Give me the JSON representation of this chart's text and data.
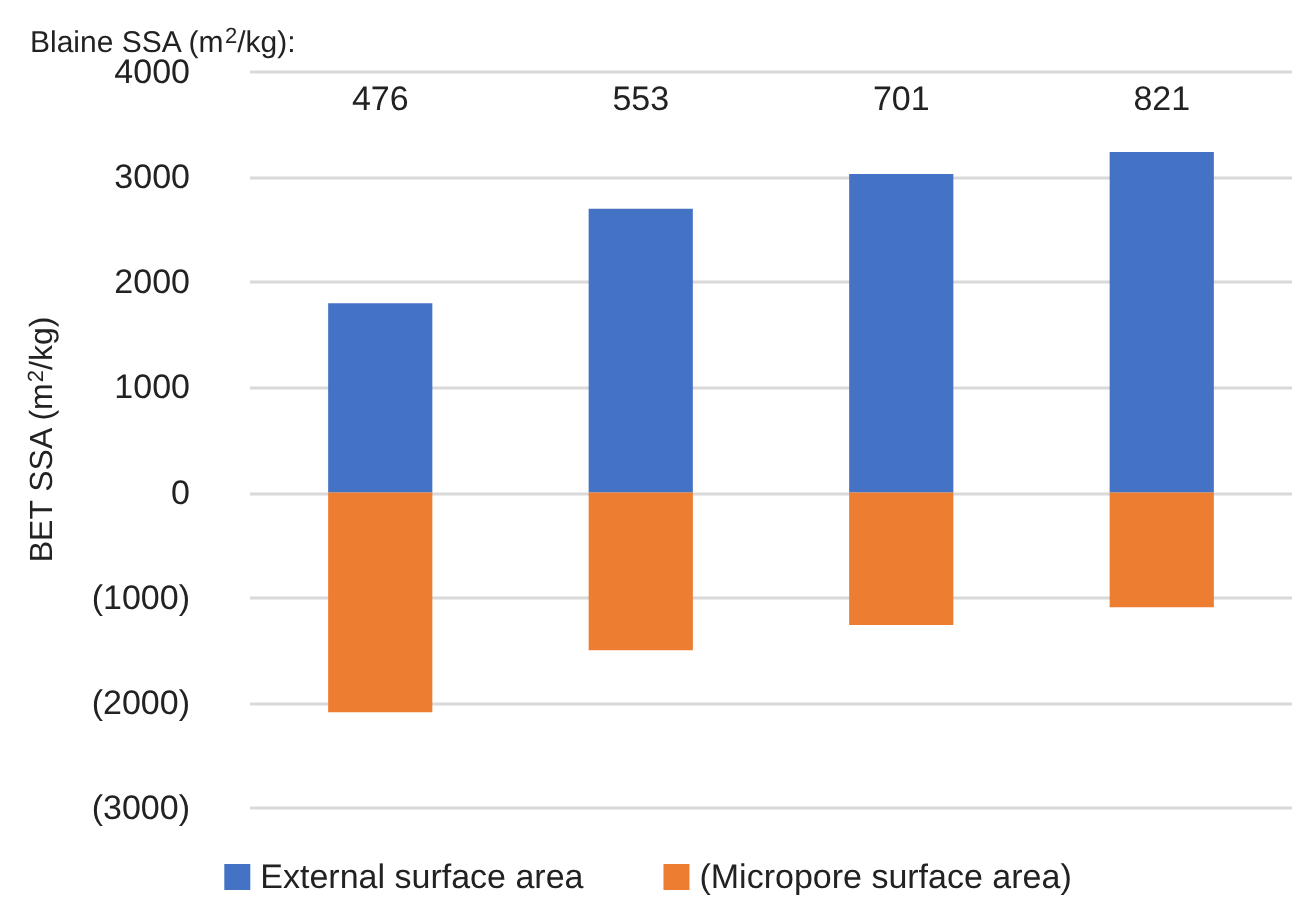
{
  "chart_data": {
    "type": "bar",
    "stacked": true,
    "xlabel": "Blaine SSA (m$^{2}$/kg):",
    "ylabel": "BET SSA (m$^{2}$/kg)",
    "categories": [
      "476",
      "553",
      "701",
      "821"
    ],
    "series": [
      {
        "name": "External surface area",
        "color": "#4472c4",
        "values": [
          1800,
          2700,
          3030,
          3240
        ]
      },
      {
        "name": "(Micropore surface area)",
        "color": "#ed7d31",
        "values": [
          -2090,
          -1500,
          -1260,
          -1090
        ]
      }
    ],
    "ylim": [
      -3000,
      4000
    ],
    "yticks": [
      {
        "value": -3000,
        "label": "(3000)"
      },
      {
        "value": -2000,
        "label": "(2000)"
      },
      {
        "value": -1000,
        "label": "(1000)"
      },
      0,
      1000,
      2000,
      3000,
      4000
    ],
    "grid": "y",
    "legend": "bottom"
  }
}
